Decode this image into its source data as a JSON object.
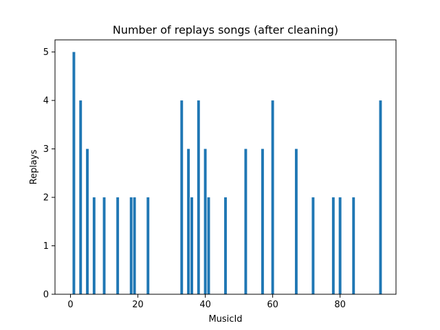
{
  "chart_data": {
    "type": "bar",
    "title": "Number of replays songs (after cleaning)",
    "xlabel": "MusicId",
    "ylabel": "Replays",
    "xlim": [
      -4.6,
      96.6
    ],
    "ylim": [
      0,
      5.25
    ],
    "xticks": [
      0,
      20,
      40,
      60,
      80
    ],
    "yticks": [
      0,
      1,
      2,
      3,
      4,
      5
    ],
    "bar_width": 0.8,
    "bar_color": "#1f77b4",
    "grid": false,
    "x": [
      1,
      3,
      5,
      7,
      10,
      14,
      18,
      19,
      23,
      33,
      35,
      36,
      38,
      40,
      41,
      46,
      52,
      57,
      60,
      67,
      72,
      78,
      80,
      84,
      92
    ],
    "values": [
      5,
      4,
      3,
      2,
      2,
      2,
      2,
      2,
      2,
      4,
      3,
      2,
      4,
      3,
      2,
      2,
      3,
      3,
      4,
      3,
      2,
      2,
      2,
      2,
      4
    ]
  }
}
